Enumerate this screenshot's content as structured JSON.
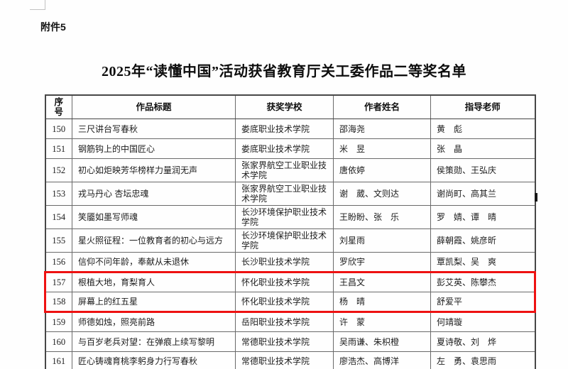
{
  "document": {
    "attachment_label": "附件5",
    "title": "2025年“读懂中国”活动获省教育厅关工委作品二等奖名单"
  },
  "colors": {
    "highlight": "#ee1111",
    "grid": "#6a6a6a",
    "outer_border": "#474747",
    "text": "#1c1c1c"
  },
  "table": {
    "columns": [
      {
        "key": "no",
        "label": "序号"
      },
      {
        "key": "title",
        "label": "作品标题"
      },
      {
        "key": "school",
        "label": "获奖学校"
      },
      {
        "key": "authors",
        "label": "作者姓名"
      },
      {
        "key": "teachers",
        "label": "指导老师"
      }
    ],
    "rows": [
      {
        "no": "150",
        "title": "三尺讲台写春秋",
        "school": "娄底职业技术学院",
        "authors": "邵海尧",
        "teachers": "黄　彪",
        "highlight": false
      },
      {
        "no": "151",
        "title": "钢筋钩上的中国匠心",
        "school": "娄底职业技术学院",
        "authors": "米　昱",
        "teachers": "张　晶",
        "highlight": false
      },
      {
        "no": "152",
        "title": "初心如炬映芳华榜样力量润无声",
        "school": "张家界航空工业职业技术学院",
        "authors": "唐依婷",
        "teachers": "侯策勋、王弘庆",
        "highlight": false
      },
      {
        "no": "153",
        "title": "戎马丹心 杏坛忠魂",
        "school": "张家界航空工业职业技术学院",
        "authors": "谢　葳、文则达",
        "teachers": "谢尚町、高其兰",
        "highlight": false
      },
      {
        "no": "154",
        "title": "笑靥如墨写师魂",
        "school": "长沙环境保护职业技术学院",
        "authors": "王盼盼、张　乐",
        "teachers": "罗　婧、谭　晴",
        "highlight": false
      },
      {
        "no": "155",
        "title": "星火照征程：一位教育者的初心与远方",
        "school": "长沙环境保护职业技术学院",
        "authors": "刘星雨",
        "teachers": "薛朝霞、姚彦昕",
        "highlight": false
      },
      {
        "no": "156",
        "title": "信仰不问年龄，奉献从未退休",
        "school": "长沙职业技术学院",
        "authors": "罗欣宇",
        "teachers": "覃凯梨、吴　爽",
        "highlight": false
      },
      {
        "no": "157",
        "title": "根植大地，育梨育人",
        "school": "怀化职业技术学院",
        "authors": "王昌文",
        "teachers": "彭艾英、陈攀杰",
        "highlight": true
      },
      {
        "no": "158",
        "title": "屏幕上的红五星",
        "school": "怀化职业技术学院",
        "authors": "杨　晴",
        "teachers": "舒爱平",
        "highlight": true
      },
      {
        "no": "159",
        "title": "师德如烛，照亮前路",
        "school": "岳阳职业技术学院",
        "authors": "许　蒙",
        "teachers": "何靖璇",
        "highlight": false
      },
      {
        "no": "160",
        "title": "与百岁老兵对望：在弹痕上续写黎明",
        "school": "常德职业技术学院",
        "authors": "吴雨谦、朱枳橙",
        "teachers": "夏诗敬、刘　烨",
        "highlight": false
      },
      {
        "no": "161",
        "title": "匠心铸魂育桃李躬身力行写春秋",
        "school": "常德职业技术学院",
        "authors": "廖浩杰、高博洋",
        "teachers": "左　勇、袁思雨",
        "highlight": false
      }
    ]
  }
}
